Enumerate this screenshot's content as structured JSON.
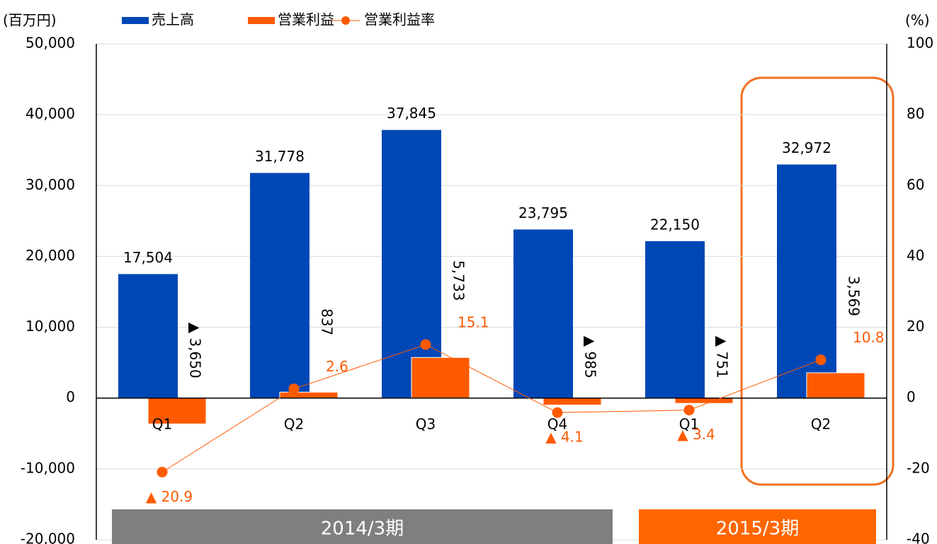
{
  "chart_data": {
    "type": "bar",
    "y_label": "(百万円)",
    "y2_label": "(%)",
    "categories": [
      "Q1",
      "Q2",
      "Q3",
      "Q4",
      "Q1",
      "Q2"
    ],
    "series": [
      {
        "name": "売上高",
        "color": "#0047b6",
        "values": [
          17504,
          31778,
          37845,
          23795,
          22150,
          32972
        ],
        "value_labels": [
          "17,504",
          "31,778",
          "37,845",
          "23,795",
          "22,150",
          "32,972"
        ]
      },
      {
        "name": "営業利益",
        "color": "#ff5a00",
        "values": [
          -3650,
          837,
          5733,
          -985,
          -751,
          3569
        ],
        "value_labels": [
          "▲ 3,650",
          "837",
          "5,733",
          "▲ 985",
          "▲ 751",
          "3,569"
        ]
      },
      {
        "name": "営業利益率",
        "type": "line",
        "axis": "y2",
        "color": "#ff5a00",
        "values": [
          -20.9,
          2.6,
          15.1,
          -4.1,
          -3.4,
          10.8
        ],
        "value_labels": [
          "▲ 20.9",
          "2.6",
          "15.1",
          "▲ 4.1",
          "▲ 3.4",
          "10.8"
        ]
      }
    ],
    "ylim": [
      -20000,
      50000
    ],
    "yticks": [
      {
        "value": -20000,
        "label": "-20,000"
      },
      {
        "value": -10000,
        "label": "-10,000"
      },
      0,
      {
        "value": 10000,
        "label": "10,000"
      },
      {
        "value": 20000,
        "label": "20,000"
      },
      {
        "value": 30000,
        "label": "30,000"
      },
      {
        "value": 40000,
        "label": "40,000"
      },
      {
        "value": 50000,
        "label": "50,000"
      }
    ],
    "y2lim": [
      -40,
      100
    ],
    "y2ticks": [
      -40,
      -20,
      0,
      20,
      40,
      60,
      80,
      100
    ],
    "grid": true,
    "periods": [
      {
        "label": "2014/3期",
        "count": 4,
        "color": "#7f7f7f"
      },
      {
        "label": "2015/3期",
        "count": 2,
        "color": "#ff6600"
      }
    ]
  }
}
